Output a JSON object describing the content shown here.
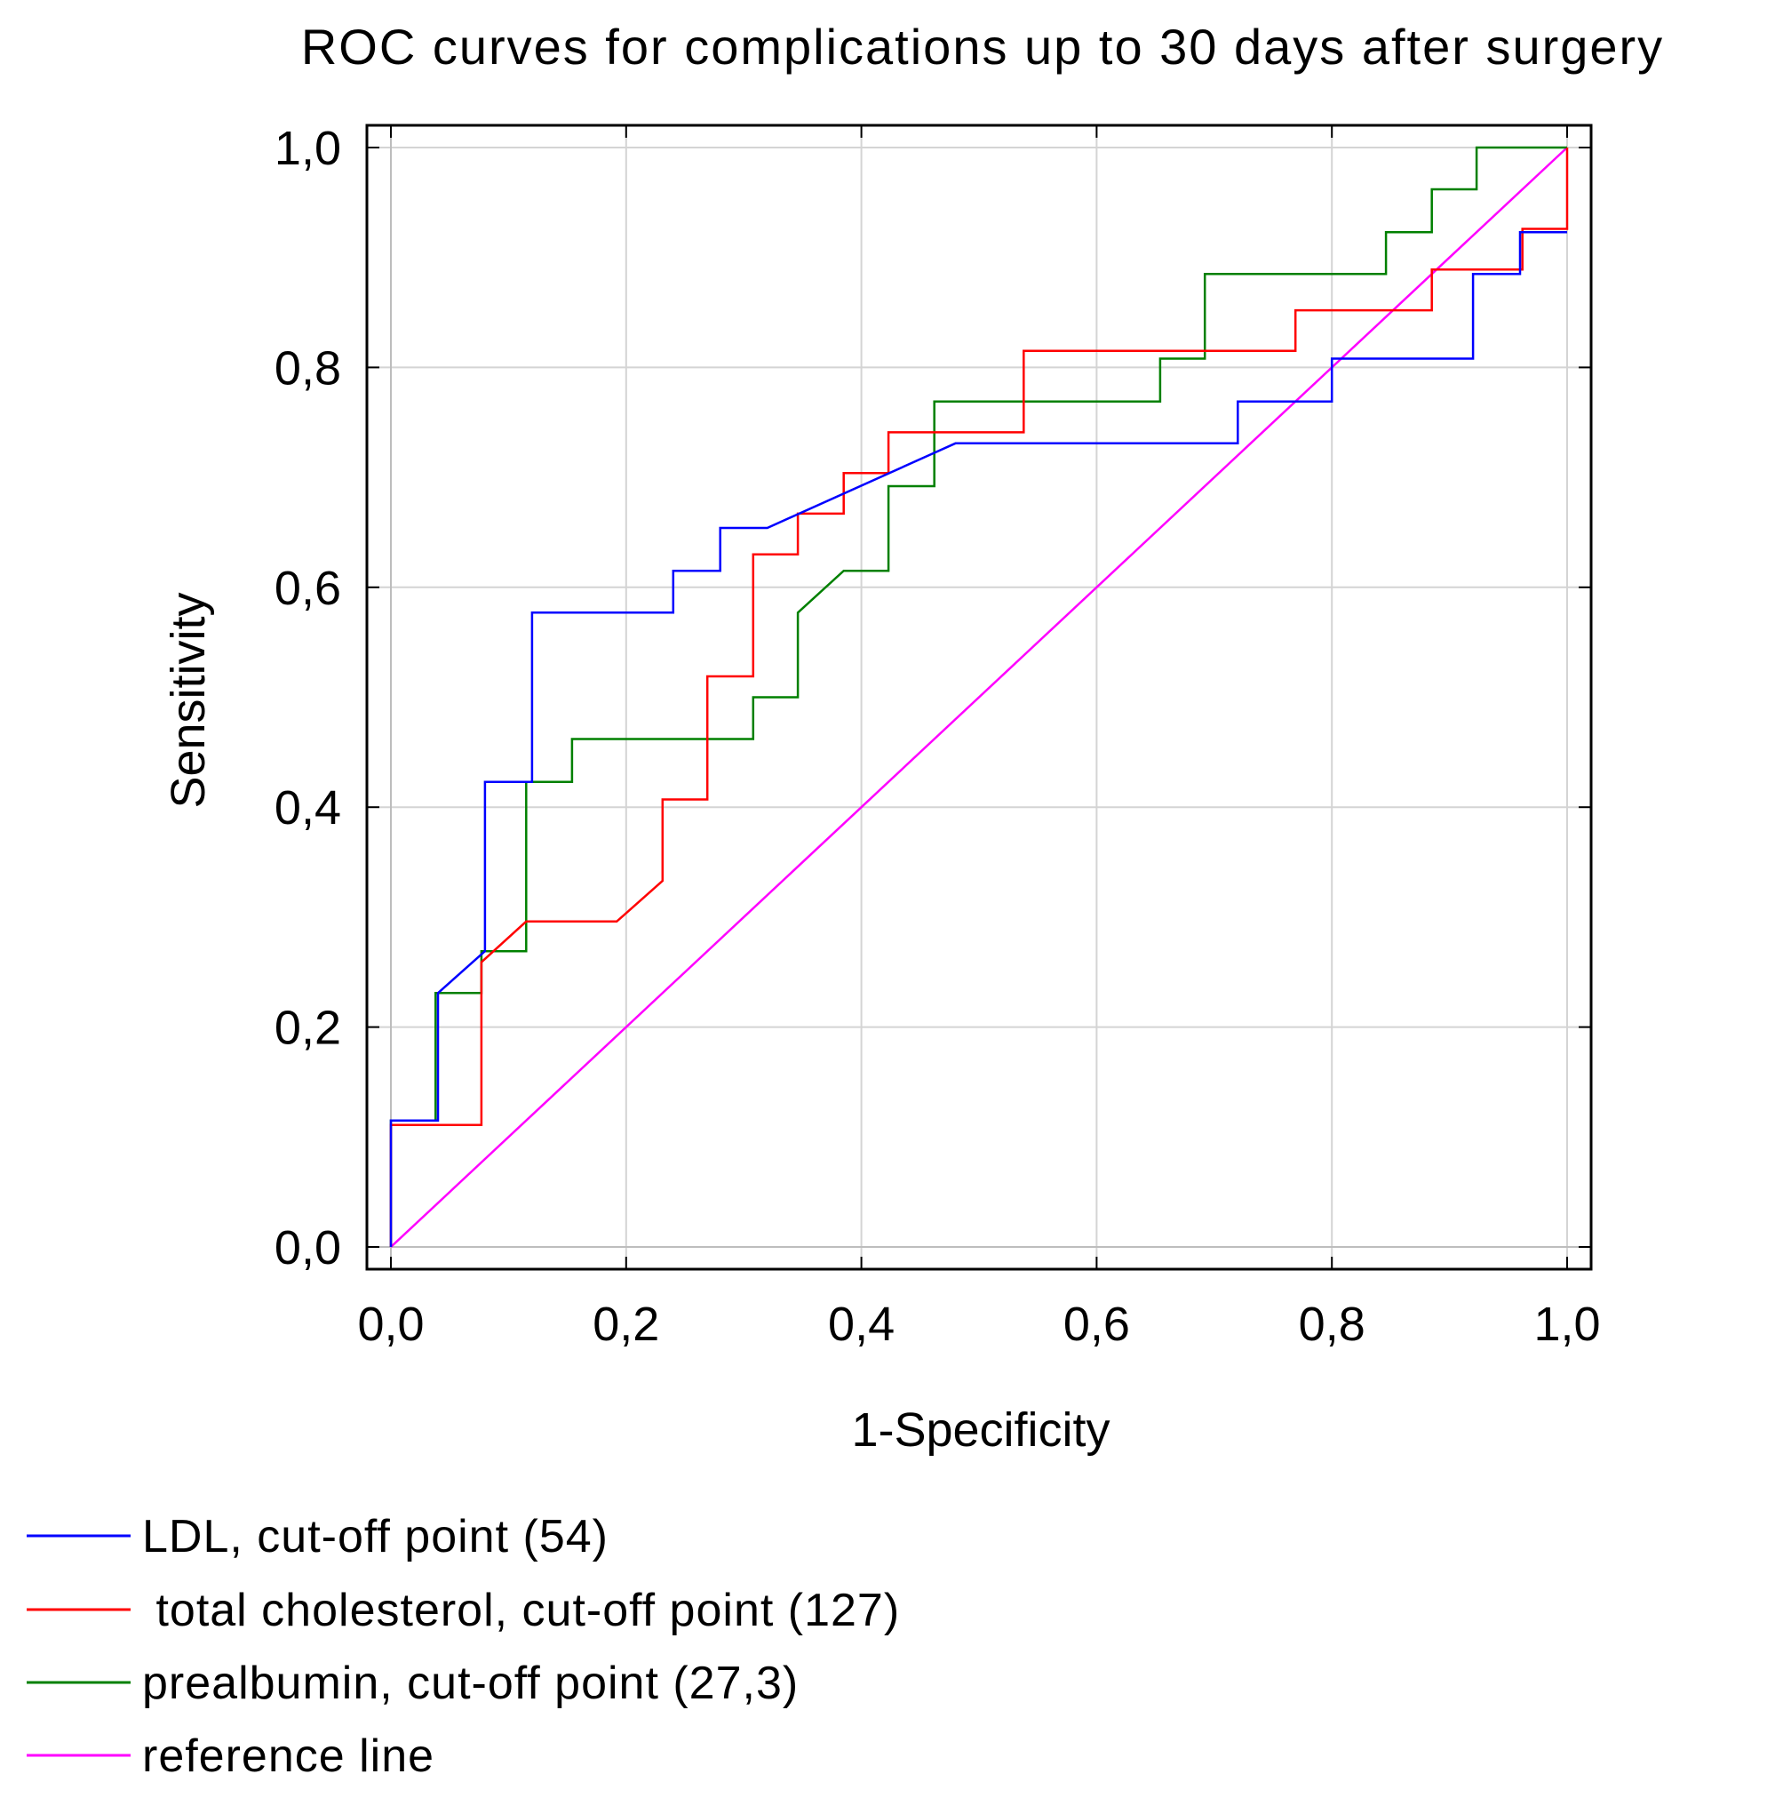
{
  "chart_data": {
    "type": "line",
    "title": "ROC curves for complications up to 30 days after surgery",
    "xlabel": "1-Specificity",
    "ylabel": "Sensitivity",
    "xlim": [
      0,
      1
    ],
    "ylim": [
      0,
      1
    ],
    "x_ticks": [
      "0,0",
      "0,2",
      "0,4",
      "0,6",
      "0,8",
      "1,0"
    ],
    "y_ticks": [
      "0,0",
      "0,2",
      "0,4",
      "0,6",
      "0,8",
      "1,0"
    ],
    "grid": true,
    "legend_position": "bottom",
    "series": [
      {
        "name": "LDL, cut-off point (54)",
        "color": "#0000ff",
        "x": [
          0.0,
          0.0,
          0.04,
          0.04,
          0.08,
          0.08,
          0.12,
          0.12,
          0.24,
          0.24,
          0.28,
          0.28,
          0.32,
          0.48,
          0.72,
          0.72,
          0.8,
          0.8,
          0.92,
          0.92,
          0.96,
          0.96,
          1.0
        ],
        "y": [
          0.0,
          0.115,
          0.115,
          0.231,
          0.269,
          0.423,
          0.423,
          0.577,
          0.577,
          0.615,
          0.615,
          0.654,
          0.654,
          0.731,
          0.731,
          0.769,
          0.769,
          0.808,
          0.808,
          0.885,
          0.885,
          0.923,
          0.923
        ]
      },
      {
        "name": " total cholesterol, cut-off point (127)",
        "color": "#ff0000",
        "x": [
          0.0,
          0.0,
          0.077,
          0.077,
          0.115,
          0.192,
          0.231,
          0.231,
          0.269,
          0.269,
          0.308,
          0.308,
          0.346,
          0.346,
          0.385,
          0.385,
          0.423,
          0.423,
          0.538,
          0.538,
          0.769,
          0.769,
          0.885,
          0.885,
          0.962,
          0.962,
          1.0,
          1.0
        ],
        "y": [
          0.0,
          0.111,
          0.111,
          0.259,
          0.296,
          0.296,
          0.333,
          0.407,
          0.407,
          0.519,
          0.519,
          0.63,
          0.63,
          0.667,
          0.667,
          0.704,
          0.704,
          0.741,
          0.741,
          0.815,
          0.815,
          0.852,
          0.852,
          0.889,
          0.889,
          0.926,
          0.926,
          1.0
        ]
      },
      {
        "name": "prealbumin, cut-off point (27,3)",
        "color": "#008000",
        "x": [
          0.0,
          0.0,
          0.038,
          0.038,
          0.077,
          0.077,
          0.115,
          0.115,
          0.154,
          0.154,
          0.308,
          0.308,
          0.346,
          0.346,
          0.385,
          0.423,
          0.423,
          0.462,
          0.462,
          0.654,
          0.654,
          0.692,
          0.692,
          0.846,
          0.846,
          0.885,
          0.885,
          0.923,
          0.923,
          1.0
        ],
        "y": [
          0.0,
          0.115,
          0.115,
          0.231,
          0.231,
          0.269,
          0.269,
          0.423,
          0.423,
          0.462,
          0.462,
          0.5,
          0.5,
          0.577,
          0.615,
          0.615,
          0.692,
          0.692,
          0.769,
          0.769,
          0.808,
          0.808,
          0.885,
          0.885,
          0.923,
          0.923,
          0.962,
          0.962,
          1.0,
          1.0
        ]
      },
      {
        "name": "reference line",
        "color": "#ff00ff",
        "x": [
          0.0,
          1.0
        ],
        "y": [
          0.0,
          1.0
        ]
      }
    ]
  }
}
